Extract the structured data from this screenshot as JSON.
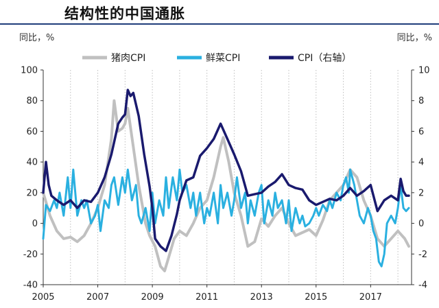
{
  "header": {
    "title": "结构性的中国通胀"
  },
  "chart_data": {
    "type": "line",
    "title": "结构性的中国通胀",
    "y_unit_left": "同比，%",
    "y_unit_right": "同比，%",
    "ylim_left": [
      -40,
      100
    ],
    "ylim_right": [
      -4,
      10
    ],
    "yticks_left": [
      -40,
      -20,
      0,
      20,
      40,
      60,
      80,
      100
    ],
    "yticks_right": [
      -4,
      -2,
      0,
      2,
      4,
      6,
      8,
      10
    ],
    "xlim": [
      2005,
      2018.5
    ],
    "xticks": [
      2005,
      2007,
      2009,
      2011,
      2013,
      2015,
      2017
    ],
    "x_grid": true,
    "legend_position": "top",
    "series": [
      {
        "name": "猪肉CPI",
        "axis": "left",
        "color": "#c0c0c0",
        "points": [
          [
            2005.0,
            20
          ],
          [
            2005.25,
            5
          ],
          [
            2005.5,
            -5
          ],
          [
            2005.75,
            -10
          ],
          [
            2006.0,
            -9
          ],
          [
            2006.25,
            -12
          ],
          [
            2006.5,
            -8
          ],
          [
            2006.75,
            0
          ],
          [
            2007.0,
            10
          ],
          [
            2007.25,
            25
          ],
          [
            2007.5,
            55
          ],
          [
            2007.6,
            80
          ],
          [
            2007.75,
            60
          ],
          [
            2007.9,
            62
          ],
          [
            2008.0,
            65
          ],
          [
            2008.1,
            75
          ],
          [
            2008.3,
            50
          ],
          [
            2008.5,
            25
          ],
          [
            2008.75,
            0
          ],
          [
            2008.9,
            -8
          ],
          [
            2009.1,
            -15
          ],
          [
            2009.3,
            -28
          ],
          [
            2009.45,
            -31
          ],
          [
            2009.6,
            -22
          ],
          [
            2009.8,
            -10
          ],
          [
            2010.0,
            -5
          ],
          [
            2010.25,
            -8
          ],
          [
            2010.5,
            0
          ],
          [
            2010.75,
            10
          ],
          [
            2011.0,
            15
          ],
          [
            2011.25,
            30
          ],
          [
            2011.5,
            50
          ],
          [
            2011.6,
            56
          ],
          [
            2011.8,
            40
          ],
          [
            2012.0,
            20
          ],
          [
            2012.25,
            5
          ],
          [
            2012.5,
            -15
          ],
          [
            2012.75,
            -12
          ],
          [
            2013.0,
            3
          ],
          [
            2013.25,
            -2
          ],
          [
            2013.5,
            5
          ],
          [
            2013.75,
            10
          ],
          [
            2014.0,
            0
          ],
          [
            2014.25,
            -8
          ],
          [
            2014.5,
            -6
          ],
          [
            2014.75,
            -4
          ],
          [
            2015.0,
            -8
          ],
          [
            2015.25,
            2
          ],
          [
            2015.5,
            15
          ],
          [
            2015.75,
            20
          ],
          [
            2016.0,
            25
          ],
          [
            2016.25,
            35
          ],
          [
            2016.5,
            30
          ],
          [
            2016.75,
            15
          ],
          [
            2017.0,
            5
          ],
          [
            2017.25,
            -10
          ],
          [
            2017.5,
            -15
          ],
          [
            2017.75,
            -10
          ],
          [
            2018.0,
            -5
          ],
          [
            2018.25,
            -10
          ],
          [
            2018.4,
            -15
          ]
        ]
      },
      {
        "name": "鲜菜CPI",
        "axis": "left",
        "color": "#2ab0e0",
        "points": [
          [
            2005.0,
            -10
          ],
          [
            2005.1,
            12
          ],
          [
            2005.25,
            8
          ],
          [
            2005.4,
            15
          ],
          [
            2005.5,
            10
          ],
          [
            2005.6,
            20
          ],
          [
            2005.75,
            5
          ],
          [
            2005.9,
            30
          ],
          [
            2006.0,
            10
          ],
          [
            2006.1,
            35
          ],
          [
            2006.25,
            5
          ],
          [
            2006.4,
            15
          ],
          [
            2006.5,
            10
          ],
          [
            2006.6,
            15
          ],
          [
            2006.75,
            0
          ],
          [
            2006.9,
            5
          ],
          [
            2007.0,
            12
          ],
          [
            2007.1,
            -5
          ],
          [
            2007.25,
            15
          ],
          [
            2007.4,
            10
          ],
          [
            2007.5,
            25
          ],
          [
            2007.6,
            30
          ],
          [
            2007.75,
            12
          ],
          [
            2007.9,
            30
          ],
          [
            2008.0,
            20
          ],
          [
            2008.1,
            35
          ],
          [
            2008.25,
            15
          ],
          [
            2008.4,
            25
          ],
          [
            2008.5,
            5
          ],
          [
            2008.6,
            0
          ],
          [
            2008.75,
            10
          ],
          [
            2008.9,
            -5
          ],
          [
            2009.0,
            20
          ],
          [
            2009.1,
            0
          ],
          [
            2009.25,
            15
          ],
          [
            2009.4,
            5
          ],
          [
            2009.5,
            30
          ],
          [
            2009.6,
            10
          ],
          [
            2009.75,
            30
          ],
          [
            2009.9,
            15
          ],
          [
            2010.0,
            35
          ],
          [
            2010.1,
            20
          ],
          [
            2010.25,
            25
          ],
          [
            2010.4,
            10
          ],
          [
            2010.5,
            20
          ],
          [
            2010.6,
            5
          ],
          [
            2010.75,
            20
          ],
          [
            2010.9,
            0
          ],
          [
            2011.0,
            10
          ],
          [
            2011.1,
            5
          ],
          [
            2011.25,
            20
          ],
          [
            2011.4,
            0
          ],
          [
            2011.5,
            25
          ],
          [
            2011.6,
            10
          ],
          [
            2011.75,
            20
          ],
          [
            2011.9,
            5
          ],
          [
            2012.0,
            15
          ],
          [
            2012.1,
            30
          ],
          [
            2012.25,
            10
          ],
          [
            2012.4,
            20
          ],
          [
            2012.5,
            0
          ],
          [
            2012.6,
            15
          ],
          [
            2012.75,
            5
          ],
          [
            2012.9,
            20
          ],
          [
            2013.0,
            25
          ],
          [
            2013.1,
            0
          ],
          [
            2013.25,
            15
          ],
          [
            2013.4,
            5
          ],
          [
            2013.5,
            20
          ],
          [
            2013.6,
            10
          ],
          [
            2013.75,
            15
          ],
          [
            2013.9,
            0
          ],
          [
            2014.0,
            15
          ],
          [
            2014.1,
            -5
          ],
          [
            2014.25,
            10
          ],
          [
            2014.4,
            0
          ],
          [
            2014.5,
            5
          ],
          [
            2014.6,
            -2
          ],
          [
            2014.75,
            0
          ],
          [
            2014.9,
            5
          ],
          [
            2015.0,
            10
          ],
          [
            2015.1,
            5
          ],
          [
            2015.25,
            12
          ],
          [
            2015.4,
            8
          ],
          [
            2015.5,
            15
          ],
          [
            2015.6,
            10
          ],
          [
            2015.75,
            20
          ],
          [
            2015.9,
            15
          ],
          [
            2016.0,
            25
          ],
          [
            2016.1,
            30
          ],
          [
            2016.2,
            20
          ],
          [
            2016.25,
            35
          ],
          [
            2016.4,
            25
          ],
          [
            2016.5,
            15
          ],
          [
            2016.6,
            5
          ],
          [
            2016.75,
            0
          ],
          [
            2016.9,
            10
          ],
          [
            2017.0,
            5
          ],
          [
            2017.1,
            -5
          ],
          [
            2017.2,
            -10
          ],
          [
            2017.3,
            -25
          ],
          [
            2017.4,
            -28
          ],
          [
            2017.5,
            -20
          ],
          [
            2017.6,
            0
          ],
          [
            2017.75,
            5
          ],
          [
            2017.9,
            0
          ],
          [
            2018.0,
            10
          ],
          [
            2018.1,
            25
          ],
          [
            2018.2,
            10
          ],
          [
            2018.3,
            8
          ],
          [
            2018.4,
            10
          ]
        ]
      },
      {
        "name": "CPI（右轴）",
        "axis": "right",
        "color": "#1a1a6e",
        "points": [
          [
            2005.0,
            2.0
          ],
          [
            2005.1,
            4.0
          ],
          [
            2005.2,
            2.5
          ],
          [
            2005.3,
            1.8
          ],
          [
            2005.5,
            1.5
          ],
          [
            2005.75,
            1.2
          ],
          [
            2006.0,
            1.5
          ],
          [
            2006.25,
            1.0
          ],
          [
            2006.5,
            1.5
          ],
          [
            2006.75,
            1.4
          ],
          [
            2007.0,
            2.0
          ],
          [
            2007.25,
            3.0
          ],
          [
            2007.5,
            4.5
          ],
          [
            2007.75,
            6.5
          ],
          [
            2007.9,
            6.9
          ],
          [
            2008.0,
            7.1
          ],
          [
            2008.1,
            8.7
          ],
          [
            2008.2,
            8.3
          ],
          [
            2008.3,
            8.5
          ],
          [
            2008.5,
            7.0
          ],
          [
            2008.7,
            4.5
          ],
          [
            2008.9,
            2.4
          ],
          [
            2009.0,
            1.0
          ],
          [
            2009.1,
            -1.0
          ],
          [
            2009.3,
            -1.5
          ],
          [
            2009.5,
            -1.8
          ],
          [
            2009.7,
            -0.8
          ],
          [
            2009.9,
            0.6
          ],
          [
            2010.0,
            1.5
          ],
          [
            2010.25,
            2.8
          ],
          [
            2010.5,
            3.0
          ],
          [
            2010.75,
            4.4
          ],
          [
            2011.0,
            4.9
          ],
          [
            2011.25,
            5.5
          ],
          [
            2011.5,
            6.5
          ],
          [
            2011.75,
            5.5
          ],
          [
            2012.0,
            4.5
          ],
          [
            2012.25,
            3.4
          ],
          [
            2012.5,
            1.8
          ],
          [
            2012.75,
            1.9
          ],
          [
            2013.0,
            2.0
          ],
          [
            2013.25,
            2.4
          ],
          [
            2013.5,
            2.7
          ],
          [
            2013.75,
            3.2
          ],
          [
            2014.0,
            2.5
          ],
          [
            2014.25,
            2.3
          ],
          [
            2014.5,
            2.2
          ],
          [
            2014.75,
            1.5
          ],
          [
            2015.0,
            1.2
          ],
          [
            2015.25,
            1.4
          ],
          [
            2015.5,
            1.6
          ],
          [
            2015.75,
            1.5
          ],
          [
            2016.0,
            1.8
          ],
          [
            2016.25,
            2.3
          ],
          [
            2016.5,
            1.8
          ],
          [
            2016.75,
            2.1
          ],
          [
            2017.0,
            2.5
          ],
          [
            2017.25,
            0.8
          ],
          [
            2017.5,
            1.5
          ],
          [
            2017.75,
            1.8
          ],
          [
            2018.0,
            1.5
          ],
          [
            2018.1,
            2.9
          ],
          [
            2018.2,
            2.1
          ],
          [
            2018.3,
            1.8
          ],
          [
            2018.4,
            1.8
          ]
        ]
      }
    ]
  }
}
